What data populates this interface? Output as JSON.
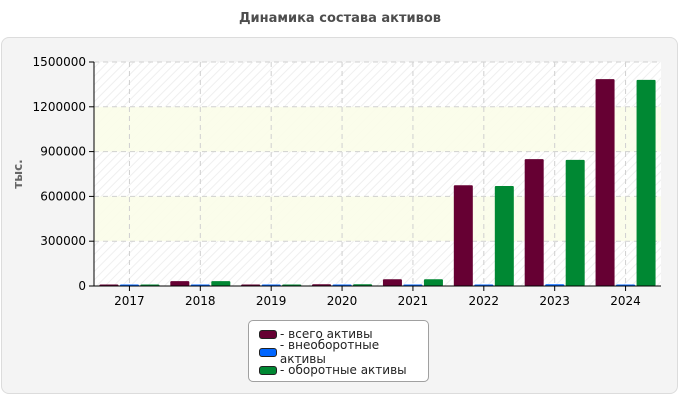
{
  "title": "Динамика состава активов",
  "chart_data": {
    "type": "bar",
    "title": "Динамика состава активов",
    "ylabel": "тыс.",
    "xlabel": "",
    "categories": [
      "2017",
      "2018",
      "2019",
      "2020",
      "2021",
      "2022",
      "2023",
      "2024"
    ],
    "ylim": [
      0,
      1500000
    ],
    "yticks": [
      "0",
      "300000",
      "600000",
      "900000",
      "1200000",
      "1500000"
    ],
    "grid": true,
    "legend_position": "bottom",
    "series": [
      {
        "name": "- всего активы",
        "color": "#660033",
        "values": [
          5000,
          33000,
          6000,
          12000,
          45000,
          675000,
          850000,
          1385000
        ]
      },
      {
        "name": "- внеоборотные активы",
        "color": "#0066ff",
        "values": [
          1000,
          1000,
          1000,
          1000,
          1000,
          2000,
          12000,
          5000
        ]
      },
      {
        "name": "- оборотные активы",
        "color": "#008833",
        "values": [
          5000,
          33000,
          6000,
          12000,
          45000,
          670000,
          845000,
          1380000
        ]
      }
    ]
  }
}
